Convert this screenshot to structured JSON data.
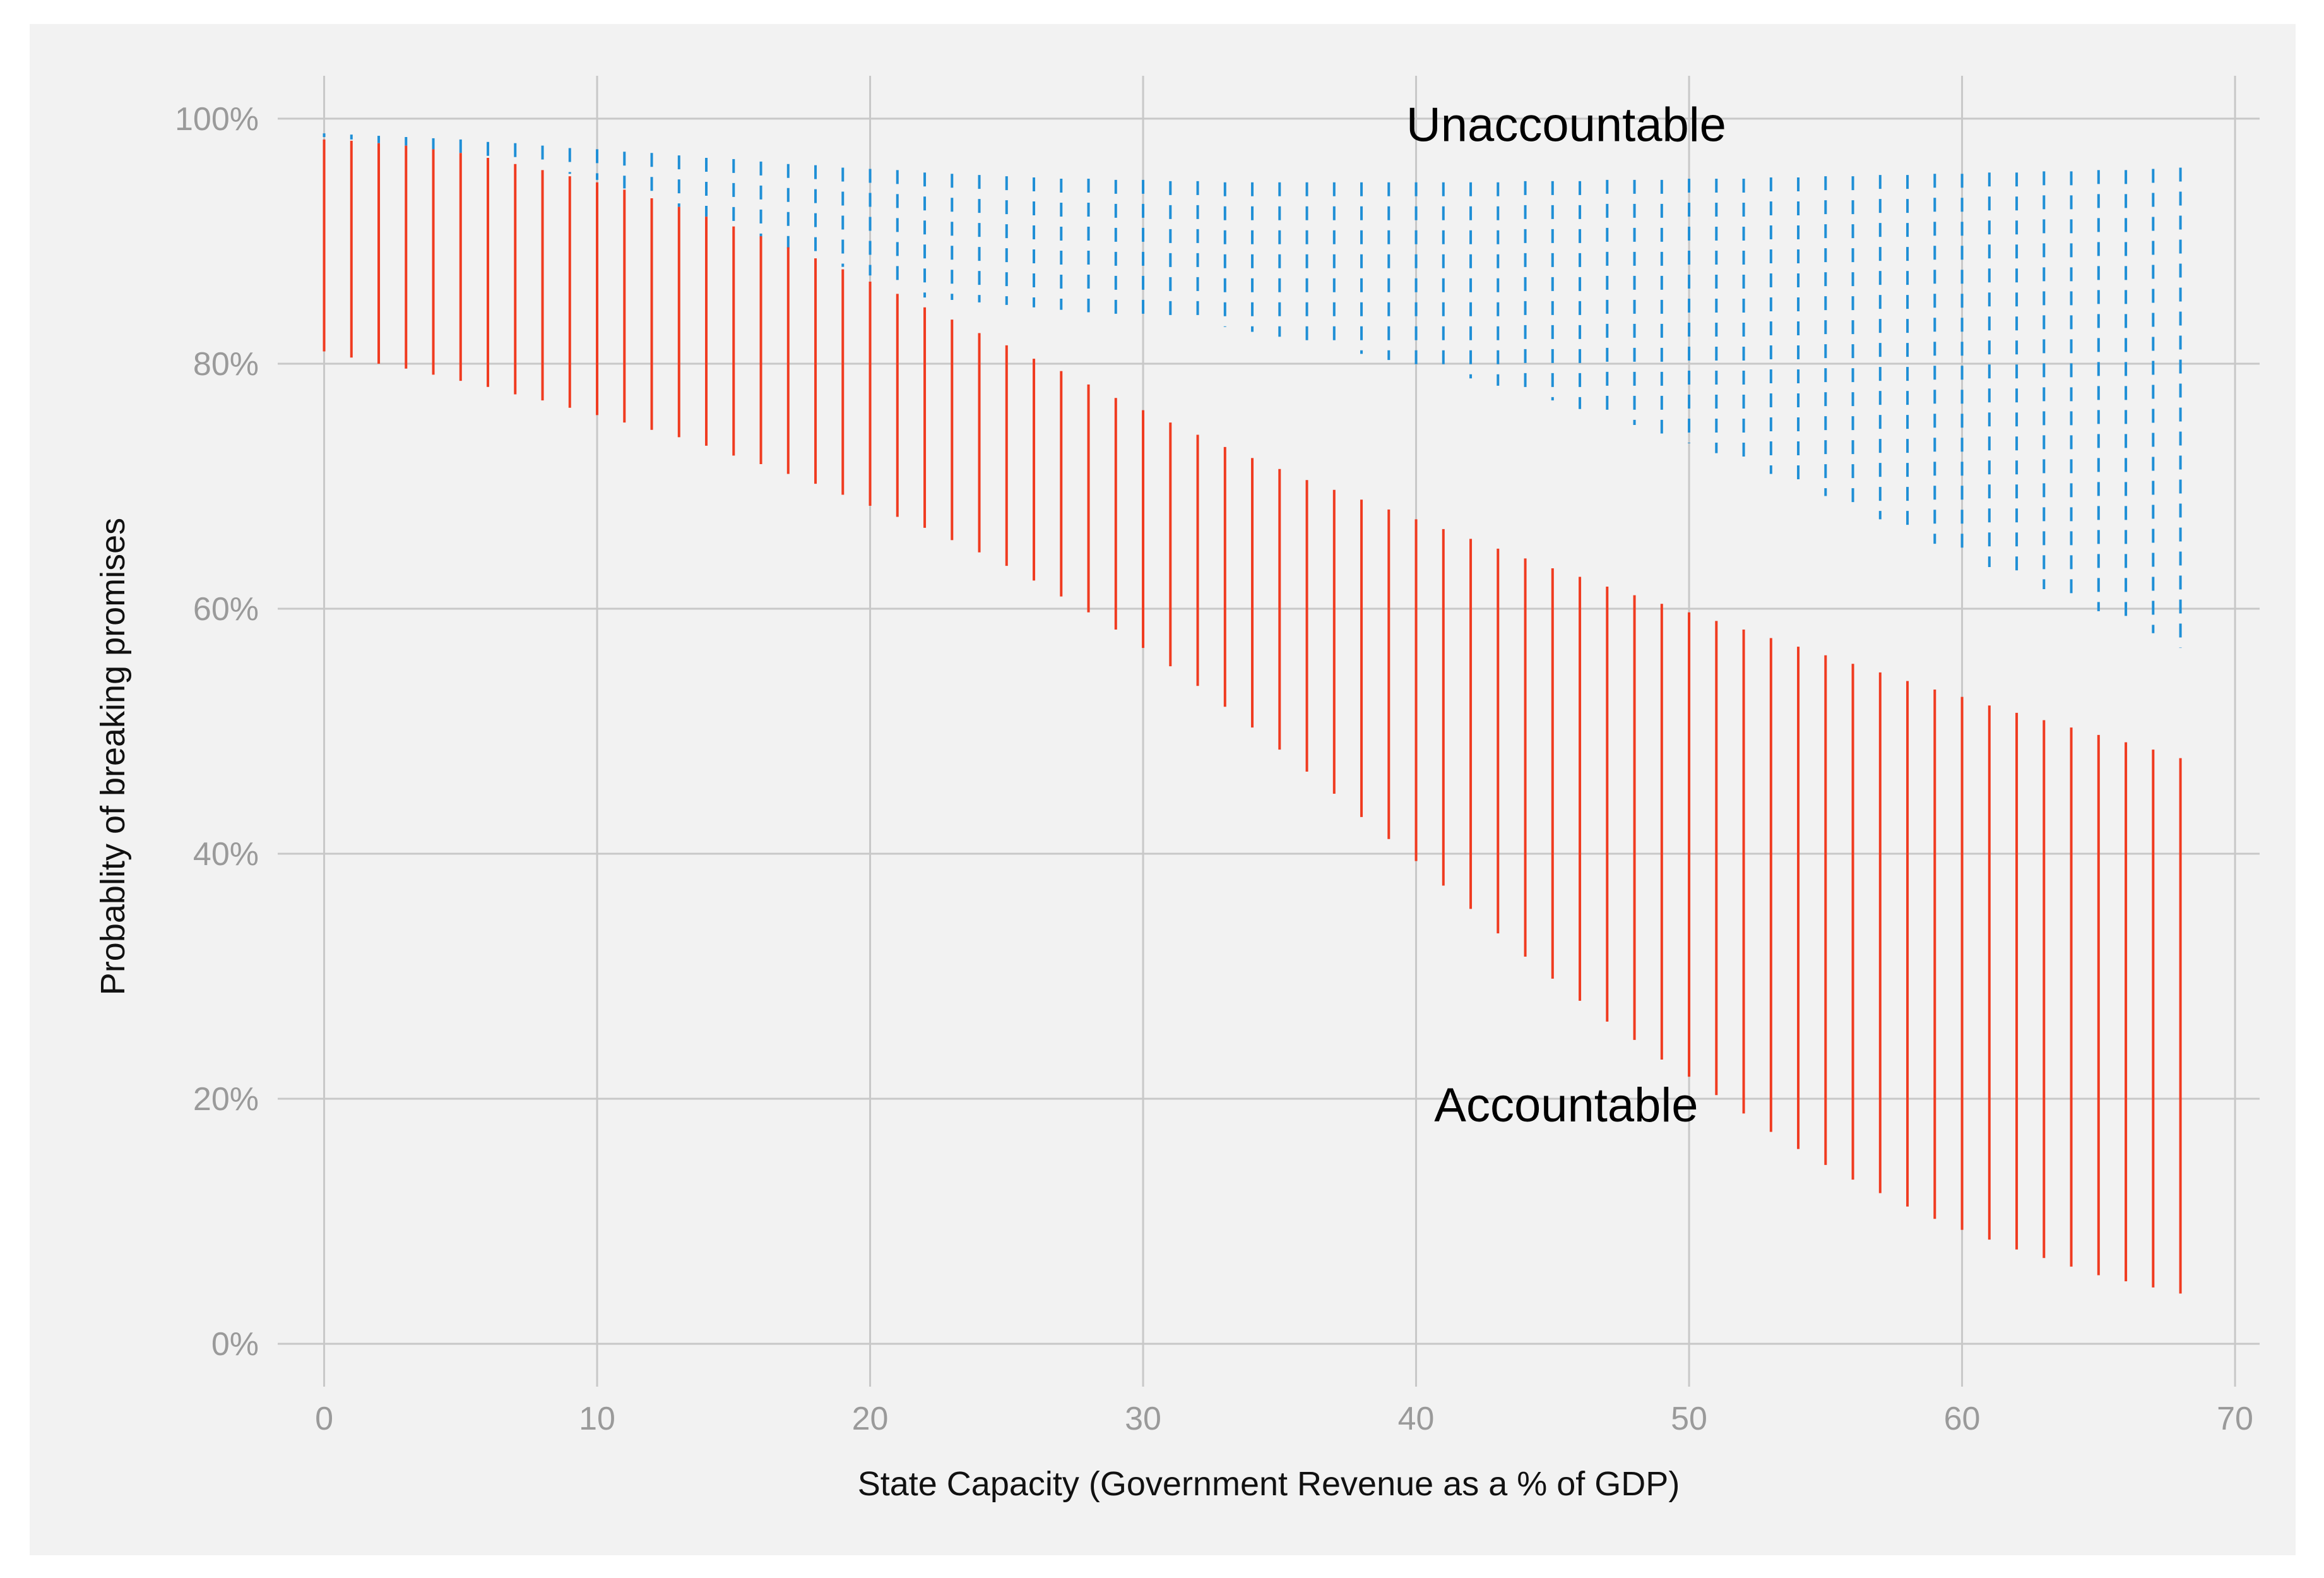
{
  "chart_data": {
    "type": "range-bar",
    "title": "",
    "xlabel": "State Capacity (Government Revenue as a % of GDP)",
    "ylabel": "Probablity of breaking promises",
    "xlim": [
      -1.7,
      70.9
    ],
    "ylim": [
      -3.5,
      103.5
    ],
    "x_ticks": [
      0,
      10,
      20,
      30,
      40,
      50,
      60,
      70
    ],
    "x_tick_labels": [
      "0",
      "10",
      "20",
      "30",
      "40",
      "50",
      "60",
      "70"
    ],
    "y_ticks": [
      0,
      20,
      40,
      60,
      80,
      100
    ],
    "y_tick_labels": [
      "0%",
      "20%",
      "40%",
      "60%",
      "80%",
      "100%"
    ],
    "grid": true,
    "annotations": [
      {
        "text": "Unaccountable",
        "x": 45.5,
        "y": 99.5
      },
      {
        "text": "Accountable",
        "x": 45.5,
        "y": 19.5
      }
    ],
    "colors": {
      "accountable": "#f03b20",
      "unaccountable": "#1f8fd6",
      "grid": "#c8c8c8",
      "panel": "#f2f2f2"
    },
    "series": [
      {
        "name": "Unaccountable",
        "style": "dashed",
        "x": [
          0,
          1,
          2,
          3,
          4,
          5,
          6,
          7,
          8,
          9,
          10,
          11,
          12,
          13,
          14,
          15,
          16,
          17,
          18,
          19,
          20,
          21,
          22,
          23,
          24,
          25,
          26,
          27,
          28,
          29,
          30,
          31,
          32,
          33,
          34,
          35,
          36,
          37,
          38,
          39,
          40,
          41,
          42,
          43,
          44,
          45,
          46,
          47,
          48,
          49,
          50,
          51,
          52,
          53,
          54,
          55,
          56,
          57,
          58,
          59,
          60,
          61,
          62,
          63,
          64,
          65,
          66,
          67,
          68
        ],
        "upper": [
          98.8,
          98.7,
          98.6,
          98.5,
          98.4,
          98.3,
          98.1,
          98.0,
          97.8,
          97.6,
          97.5,
          97.3,
          97.2,
          97.0,
          96.8,
          96.7,
          96.5,
          96.3,
          96.2,
          96.0,
          95.9,
          95.8,
          95.6,
          95.5,
          95.4,
          95.3,
          95.2,
          95.1,
          95.1,
          95.0,
          95.0,
          94.9,
          94.9,
          94.8,
          94.8,
          94.8,
          94.8,
          94.8,
          94.8,
          94.8,
          94.8,
          94.8,
          94.8,
          94.8,
          94.9,
          94.9,
          94.9,
          95.0,
          95.0,
          95.0,
          95.1,
          95.1,
          95.1,
          95.2,
          95.2,
          95.3,
          95.3,
          95.4,
          95.4,
          95.5,
          95.5,
          95.6,
          95.6,
          95.7,
          95.7,
          95.8,
          95.8,
          95.9,
          96.0
        ],
        "lower": [
          98.5,
          98.3,
          98.0,
          97.8,
          97.5,
          97.2,
          96.8,
          96.4,
          96.0,
          95.5,
          95.0,
          94.3,
          93.6,
          92.8,
          92.0,
          91.1,
          90.2,
          89.4,
          88.6,
          87.9,
          87.2,
          86.3,
          85.4,
          85.2,
          85.0,
          84.8,
          84.6,
          84.4,
          84.2,
          84.0,
          83.8,
          83.6,
          83.3,
          83.0,
          82.6,
          82.2,
          81.8,
          81.3,
          80.8,
          80.3,
          79.8,
          79.3,
          78.8,
          78.2,
          77.6,
          77.0,
          76.3,
          75.7,
          75.0,
          74.3,
          73.5,
          72.7,
          71.9,
          71.0,
          70.1,
          69.2,
          68.3,
          67.3,
          66.3,
          65.3,
          64.3,
          63.4,
          62.5,
          61.6,
          60.7,
          59.8,
          59.0,
          58.0,
          56.8
        ]
      },
      {
        "name": "Accountable",
        "style": "solid",
        "x": [
          0,
          1,
          2,
          3,
          4,
          5,
          6,
          7,
          8,
          9,
          10,
          11,
          12,
          13,
          14,
          15,
          16,
          17,
          18,
          19,
          20,
          21,
          22,
          23,
          24,
          25,
          26,
          27,
          28,
          29,
          30,
          31,
          32,
          33,
          34,
          35,
          36,
          37,
          38,
          39,
          40,
          41,
          42,
          43,
          44,
          45,
          46,
          47,
          48,
          49,
          50,
          51,
          52,
          53,
          54,
          55,
          56,
          57,
          58,
          59,
          60,
          61,
          62,
          63,
          64,
          65,
          66,
          67,
          68
        ],
        "upper": [
          98.3,
          98.2,
          98.0,
          97.8,
          97.5,
          97.2,
          96.8,
          96.3,
          95.8,
          95.3,
          94.8,
          94.2,
          93.5,
          92.8,
          92.0,
          91.2,
          90.4,
          89.5,
          88.6,
          87.7,
          86.7,
          85.7,
          84.6,
          83.6,
          82.5,
          81.5,
          80.4,
          79.4,
          78.3,
          77.2,
          76.2,
          75.2,
          74.2,
          73.2,
          72.3,
          71.4,
          70.5,
          69.7,
          68.9,
          68.1,
          67.3,
          66.5,
          65.7,
          64.9,
          64.1,
          63.3,
          62.6,
          61.8,
          61.1,
          60.4,
          59.7,
          59.0,
          58.3,
          57.6,
          56.9,
          56.2,
          55.5,
          54.8,
          54.1,
          53.4,
          52.8,
          52.1,
          51.5,
          50.9,
          50.3,
          49.7,
          49.1,
          48.5,
          47.8
        ],
        "lower": [
          81.0,
          80.5,
          80.0,
          79.6,
          79.1,
          78.6,
          78.1,
          77.5,
          77.0,
          76.4,
          75.8,
          75.2,
          74.6,
          74.0,
          73.3,
          72.5,
          71.8,
          71.0,
          70.2,
          69.3,
          68.4,
          67.5,
          66.6,
          65.6,
          64.6,
          63.5,
          62.3,
          61.0,
          59.7,
          58.3,
          56.8,
          55.3,
          53.7,
          52.0,
          50.3,
          48.5,
          46.7,
          44.9,
          43.0,
          41.2,
          39.4,
          37.4,
          35.5,
          33.5,
          31.6,
          29.8,
          28.0,
          26.3,
          24.8,
          23.2,
          21.8,
          20.3,
          18.8,
          17.3,
          15.9,
          14.6,
          13.4,
          12.3,
          11.2,
          10.2,
          9.3,
          8.5,
          7.7,
          7.0,
          6.3,
          5.6,
          5.1,
          4.6,
          4.1
        ]
      }
    ]
  }
}
